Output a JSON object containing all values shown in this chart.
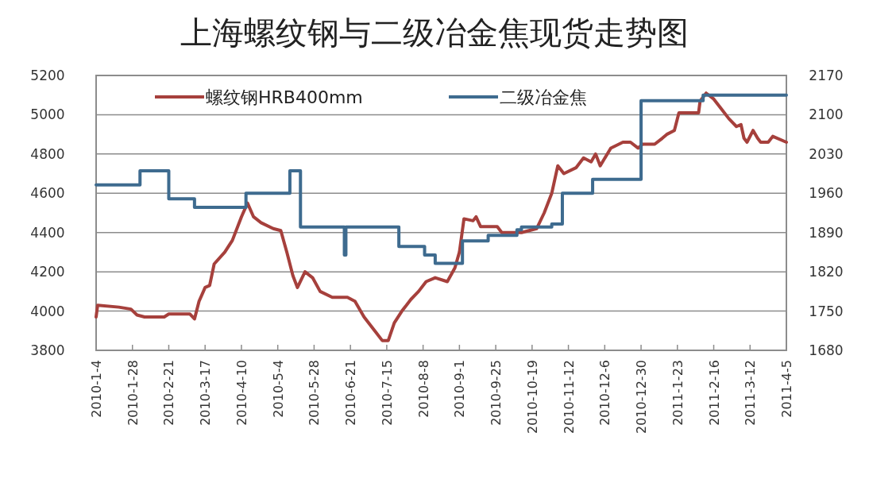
{
  "chart_data": {
    "type": "line",
    "title": "上海螺纹钢与二级冶金焦现货走势图",
    "xlim": [
      "2010-01-04",
      "2011-04-05"
    ],
    "xticks": [
      {
        "value": "2010-01-04",
        "label": "2010-1-4"
      },
      {
        "value": "2010-01-28",
        "label": "2010-1-28"
      },
      {
        "value": "2010-02-21",
        "label": "2010-2-21"
      },
      {
        "value": "2010-03-17",
        "label": "2010-3-17"
      },
      {
        "value": "2010-04-10",
        "label": "2010-4-10"
      },
      {
        "value": "2010-05-04",
        "label": "2010-5-4"
      },
      {
        "value": "2010-05-28",
        "label": "2010-5-28"
      },
      {
        "value": "2010-06-21",
        "label": "2010-6-21"
      },
      {
        "value": "2010-07-15",
        "label": "2010-7-15"
      },
      {
        "value": "2010-08-08",
        "label": "2010-8-8"
      },
      {
        "value": "2010-09-01",
        "label": "2010-9-1"
      },
      {
        "value": "2010-09-25",
        "label": "2010-9-25"
      },
      {
        "value": "2010-10-19",
        "label": "2010-10-19"
      },
      {
        "value": "2010-11-12",
        "label": "2010-11-12"
      },
      {
        "value": "2010-12-06",
        "label": "2010-12-6"
      },
      {
        "value": "2010-12-30",
        "label": "2010-12-30"
      },
      {
        "value": "2011-01-23",
        "label": "2011-1-23"
      },
      {
        "value": "2011-02-16",
        "label": "2011-2-16"
      },
      {
        "value": "2011-03-12",
        "label": "2011-3-12"
      },
      {
        "value": "2011-04-05",
        "label": "2011-4-5"
      }
    ],
    "ylim": [
      3800,
      5200
    ],
    "yticks": [
      3800,
      4000,
      4200,
      4400,
      4600,
      4800,
      5000,
      5200
    ],
    "y2lim": [
      1680,
      2170
    ],
    "y2ticks": [
      1680,
      1750,
      1820,
      1890,
      1960,
      2030,
      2100,
      2170
    ],
    "grid": "y",
    "legend": "top",
    "series": [
      {
        "name": "螺纹钢HRB400mm",
        "type": "line",
        "color": "#a6403c",
        "x": [
          "2010-01-04",
          "2010-01-05",
          "2010-01-19",
          "2010-01-27",
          "2010-01-31",
          "2010-02-05",
          "2010-02-18",
          "2010-02-21",
          "2010-03-07",
          "2010-03-10",
          "2010-03-13",
          "2010-03-17",
          "2010-03-20",
          "2010-03-23",
          "2010-03-30",
          "2010-04-04",
          "2010-04-10",
          "2010-04-14",
          "2010-04-18",
          "2010-04-23",
          "2010-05-01",
          "2010-05-06",
          "2010-05-10",
          "2010-05-14",
          "2010-05-17",
          "2010-05-22",
          "2010-05-27",
          "2010-06-01",
          "2010-06-09",
          "2010-06-19",
          "2010-06-24",
          "2010-06-30",
          "2010-07-07",
          "2010-07-12",
          "2010-07-16",
          "2010-07-20",
          "2010-07-25",
          "2010-07-31",
          "2010-08-05",
          "2010-08-10",
          "2010-08-16",
          "2010-08-24",
          "2010-08-29",
          "2010-09-01",
          "2010-09-04",
          "2010-09-10",
          "2010-09-12",
          "2010-09-15",
          "2010-09-26",
          "2010-09-29",
          "2010-10-12",
          "2010-10-22",
          "2010-10-27",
          "2010-11-01",
          "2010-11-05",
          "2010-11-09",
          "2010-11-17",
          "2010-11-22",
          "2010-11-27",
          "2010-11-30",
          "2010-12-03",
          "2010-12-10",
          "2010-12-18",
          "2010-12-23",
          "2010-12-28",
          "2010-12-31",
          "2011-01-08",
          "2011-01-13",
          "2011-01-16",
          "2011-01-21",
          "2011-01-24",
          "2011-02-03",
          "2011-02-06",
          "2011-02-07",
          "2011-02-11",
          "2011-02-16",
          "2011-02-21",
          "2011-02-26",
          "2011-03-03",
          "2011-03-06",
          "2011-03-08",
          "2011-03-10",
          "2011-03-14",
          "2011-03-17",
          "2011-03-19",
          "2011-03-24",
          "2011-03-27",
          "2011-04-05"
        ],
        "values": [
          3970,
          4030,
          4020,
          4010,
          3980,
          3970,
          3970,
          3985,
          3985,
          3960,
          4050,
          4120,
          4130,
          4240,
          4300,
          4360,
          4480,
          4550,
          4480,
          4450,
          4420,
          4410,
          4300,
          4180,
          4120,
          4200,
          4170,
          4100,
          4070,
          4070,
          4050,
          3970,
          3900,
          3850,
          3850,
          3940,
          4000,
          4060,
          4100,
          4150,
          4170,
          4150,
          4220,
          4300,
          4470,
          4460,
          4480,
          4430,
          4430,
          4400,
          4400,
          4420,
          4500,
          4600,
          4740,
          4700,
          4730,
          4780,
          4760,
          4800,
          4740,
          4830,
          4860,
          4860,
          4830,
          4850,
          4850,
          4880,
          4900,
          4920,
          5010,
          5010,
          5010,
          5070,
          5110,
          5080,
          5030,
          4980,
          4940,
          4950,
          4880,
          4860,
          4920,
          4880,
          4860,
          4860,
          4890,
          4860
        ]
      },
      {
        "name": "二级冶金焦",
        "type": "step",
        "axis": "y2",
        "color": "#3e6b8f",
        "x": [
          "2010-01-04",
          "2010-02-02",
          "2010-02-21",
          "2010-03-10",
          "2010-04-13",
          "2010-05-12",
          "2010-05-19",
          "2010-06-17",
          "2010-06-18",
          "2010-07-23",
          "2010-08-09",
          "2010-08-16",
          "2010-09-03",
          "2010-09-20",
          "2010-10-09",
          "2010-10-12",
          "2010-11-01",
          "2010-11-08",
          "2010-11-28",
          "2010-12-30",
          "2011-02-09",
          "2011-04-05"
        ],
        "values": [
          1975,
          2000,
          1950,
          1935,
          1960,
          2000,
          1900,
          1850,
          1900,
          1865,
          1850,
          1835,
          1875,
          1885,
          1895,
          1900,
          1905,
          1960,
          1985,
          2125,
          2135,
          2135
        ]
      }
    ]
  }
}
